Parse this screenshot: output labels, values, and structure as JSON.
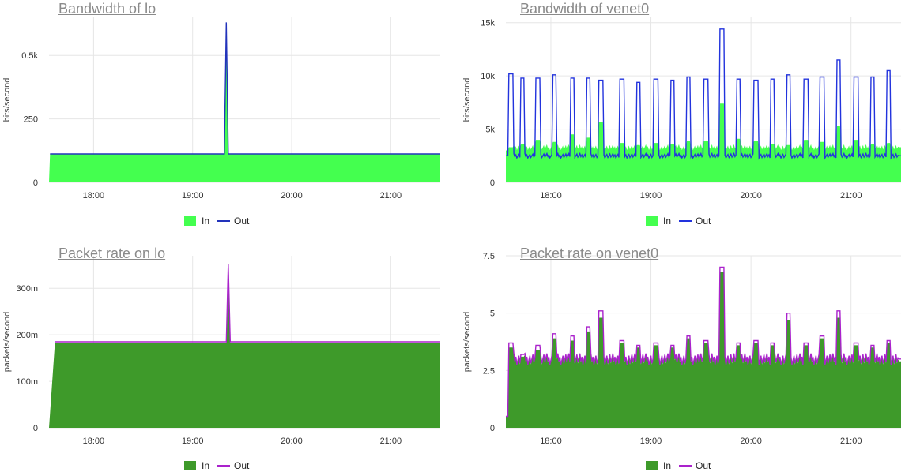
{
  "charts": [
    {
      "title": "Bandwidth of lo",
      "ylabel": "bits/second",
      "y_ticks": [
        {
          "v": 0,
          "label": "0"
        },
        {
          "v": 250,
          "label": "250"
        },
        {
          "v": 500,
          "label": "0.5k"
        }
      ],
      "x_ticks": [
        {
          "v": 18,
          "label": "18:00"
        },
        {
          "v": 19,
          "label": "19:00"
        },
        {
          "v": 20,
          "label": "20:00"
        },
        {
          "v": 21,
          "label": "21:00"
        }
      ],
      "legend": {
        "in": "In",
        "out": "Out"
      },
      "in_color": "#44ff4f",
      "out_color": "#2233bb"
    },
    {
      "title": "Bandwidth of venet0",
      "ylabel": "bits/second",
      "y_ticks": [
        {
          "v": 0,
          "label": "0"
        },
        {
          "v": 5000,
          "label": "5k"
        },
        {
          "v": 10000,
          "label": "10k"
        },
        {
          "v": 15000,
          "label": "15k"
        }
      ],
      "x_ticks": [
        {
          "v": 18,
          "label": "18:00"
        },
        {
          "v": 19,
          "label": "19:00"
        },
        {
          "v": 20,
          "label": "20:00"
        },
        {
          "v": 21,
          "label": "21:00"
        }
      ],
      "legend": {
        "in": "In",
        "out": "Out"
      },
      "in_color": "#44ff4f",
      "out_color": "#2233dd"
    },
    {
      "title": "Packet rate on lo",
      "ylabel": "packets/second",
      "y_ticks": [
        {
          "v": 0,
          "label": "0"
        },
        {
          "v": 0.1,
          "label": "100m"
        },
        {
          "v": 0.2,
          "label": "200m"
        },
        {
          "v": 0.3,
          "label": "300m"
        }
      ],
      "x_ticks": [
        {
          "v": 18,
          "label": "18:00"
        },
        {
          "v": 19,
          "label": "19:00"
        },
        {
          "v": 20,
          "label": "20:00"
        },
        {
          "v": 21,
          "label": "21:00"
        }
      ],
      "legend": {
        "in": "In",
        "out": "Out"
      },
      "in_color": "#3e9a2a",
      "out_color": "#aa22cc"
    },
    {
      "title": "Packet rate on venet0",
      "ylabel": "packets/second",
      "y_ticks": [
        {
          "v": 0,
          "label": "0"
        },
        {
          "v": 2.5,
          "label": "2.5"
        },
        {
          "v": 5,
          "label": "5"
        },
        {
          "v": 7.5,
          "label": "7.5"
        }
      ],
      "x_ticks": [
        {
          "v": 18,
          "label": "18:00"
        },
        {
          "v": 19,
          "label": "19:00"
        },
        {
          "v": 20,
          "label": "20:00"
        },
        {
          "v": 21,
          "label": "21:00"
        }
      ],
      "legend": {
        "in": "In",
        "out": "Out"
      },
      "in_color": "#3e9a2a",
      "out_color": "#aa22cc"
    }
  ],
  "chart_data": [
    {
      "type": "area",
      "title": "Bandwidth of lo",
      "ylabel": "bits/second",
      "xlabel": "",
      "x_unit": "hour of day",
      "xlim": [
        17.55,
        21.5
      ],
      "ylim": [
        0,
        650
      ],
      "grid": true,
      "legend_position": "bottom",
      "series": [
        {
          "name": "In",
          "style": "filled-area",
          "x": [
            17.55,
            17.56,
            19.32,
            19.34,
            19.36,
            21.5
          ],
          "values": [
            0,
            112,
            112,
            600,
            112,
            112
          ]
        },
        {
          "name": "Out",
          "style": "line",
          "x": [
            17.56,
            19.32,
            19.34,
            19.36,
            21.5
          ],
          "values": [
            112,
            112,
            630,
            112,
            112
          ]
        }
      ]
    },
    {
      "type": "area",
      "title": "Bandwidth of venet0",
      "ylabel": "bits/second",
      "xlabel": "",
      "x_unit": "hour of day",
      "xlim": [
        17.55,
        21.5
      ],
      "ylim": [
        0,
        15500
      ],
      "grid": true,
      "legend_position": "bottom",
      "series": [
        {
          "name": "In",
          "style": "filled-area",
          "x": [
            17.55,
            17.6,
            17.72,
            17.87,
            18.04,
            18.22,
            18.38,
            18.5,
            18.71,
            18.88,
            19.05,
            19.22,
            19.38,
            19.55,
            19.71,
            19.88,
            20.05,
            20.22,
            20.38,
            20.55,
            20.71,
            20.88,
            21.05,
            21.22,
            21.38,
            21.5
          ],
          "values": [
            3000,
            3300,
            3600,
            4000,
            3800,
            4500,
            4200,
            5700,
            3700,
            3500,
            3700,
            3600,
            3900,
            3900,
            7400,
            4100,
            3900,
            3600,
            3500,
            4000,
            3800,
            5300,
            4000,
            3600,
            3700,
            3300
          ]
        },
        {
          "name": "Out",
          "style": "line",
          "x": [
            17.55,
            17.6,
            17.72,
            17.87,
            18.04,
            18.22,
            18.38,
            18.5,
            18.71,
            18.88,
            19.05,
            19.22,
            19.38,
            19.55,
            19.71,
            19.88,
            20.05,
            20.22,
            20.38,
            20.55,
            20.71,
            20.88,
            21.05,
            21.22,
            21.38,
            21.5
          ],
          "values": [
            2500,
            10200,
            9800,
            9800,
            10100,
            9800,
            9800,
            9600,
            9700,
            9400,
            9700,
            9600,
            9900,
            9700,
            14400,
            9700,
            9600,
            9700,
            10100,
            9700,
            9900,
            11500,
            9900,
            9900,
            10500,
            2500
          ]
        }
      ]
    },
    {
      "type": "area",
      "title": "Packet rate on lo",
      "ylabel": "packets/second",
      "xlabel": "",
      "x_unit": "hour of day",
      "xlim": [
        17.55,
        21.5
      ],
      "ylim": [
        0,
        0.37
      ],
      "grid": true,
      "legend_position": "bottom",
      "series": [
        {
          "name": "In",
          "style": "filled-area",
          "x": [
            17.55,
            17.61,
            19.34,
            19.36,
            19.38,
            21.5
          ],
          "values": [
            0,
            0.183,
            0.183,
            0.35,
            0.183,
            0.183
          ]
        },
        {
          "name": "Out",
          "style": "line",
          "x": [
            17.61,
            19.34,
            19.36,
            19.38,
            21.5
          ],
          "values": [
            0.185,
            0.185,
            0.352,
            0.185,
            0.185
          ]
        }
      ]
    },
    {
      "type": "area",
      "title": "Packet rate on venet0",
      "ylabel": "packets/second",
      "xlabel": "",
      "x_unit": "hour of day",
      "xlim": [
        17.55,
        21.5
      ],
      "ylim": [
        0,
        7.5
      ],
      "grid": true,
      "legend_position": "bottom",
      "series": [
        {
          "name": "In",
          "style": "filled-area",
          "x": [
            17.55,
            17.6,
            17.72,
            17.87,
            18.04,
            18.22,
            18.38,
            18.5,
            18.71,
            18.88,
            19.05,
            19.22,
            19.38,
            19.55,
            19.71,
            19.88,
            20.05,
            20.22,
            20.38,
            20.55,
            20.71,
            20.88,
            21.05,
            21.22,
            21.38,
            21.5
          ],
          "values": [
            0.5,
            3.5,
            3.1,
            3.4,
            3.9,
            3.8,
            4.2,
            4.8,
            3.7,
            3.5,
            3.6,
            3.5,
            3.9,
            3.7,
            6.8,
            3.6,
            3.7,
            3.6,
            4.7,
            3.6,
            3.9,
            4.8,
            3.6,
            3.5,
            3.7,
            2.9
          ]
        },
        {
          "name": "Out",
          "style": "line",
          "x": [
            17.55,
            17.6,
            17.72,
            17.87,
            18.04,
            18.22,
            18.38,
            18.5,
            18.71,
            18.88,
            19.05,
            19.22,
            19.38,
            19.55,
            19.71,
            19.88,
            20.05,
            20.22,
            20.38,
            20.55,
            20.71,
            20.88,
            21.05,
            21.22,
            21.38,
            21.5
          ],
          "values": [
            0.5,
            3.7,
            3.2,
            3.6,
            4.1,
            4.0,
            4.4,
            5.1,
            3.8,
            3.6,
            3.7,
            3.6,
            4.0,
            3.8,
            7.0,
            3.7,
            3.8,
            3.7,
            5.0,
            3.7,
            4.0,
            5.1,
            3.7,
            3.6,
            3.8,
            3.0
          ]
        }
      ]
    }
  ]
}
